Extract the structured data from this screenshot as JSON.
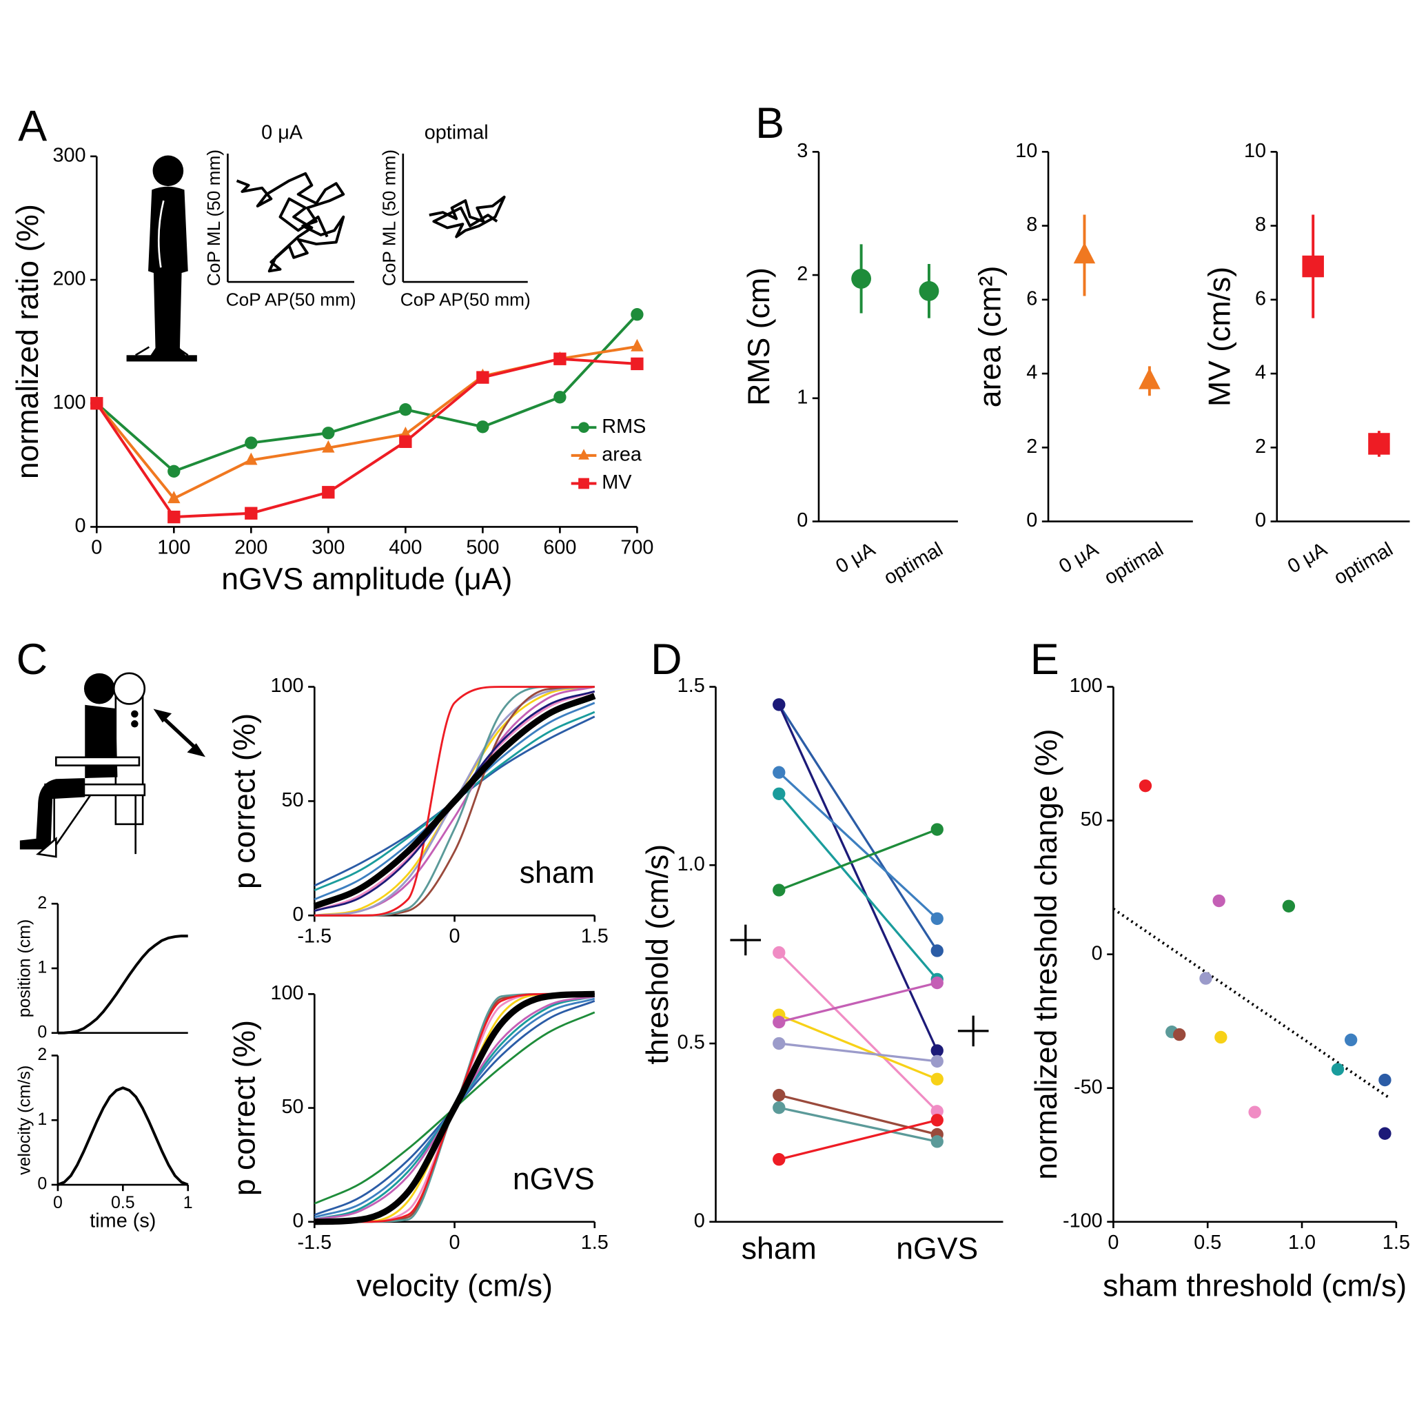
{
  "chart_data": [
    {
      "type": "line",
      "panel": "A",
      "xlabel": "nGVS amplitude (μA)",
      "ylabel": "normalized ratio (%)",
      "x": [
        0,
        100,
        200,
        300,
        400,
        500,
        600,
        700
      ],
      "xlim": [
        0,
        700
      ],
      "ylim": [
        0,
        300
      ],
      "xticks": [
        0,
        100,
        200,
        300,
        400,
        500,
        600,
        700
      ],
      "yticks": [
        0,
        100,
        200,
        300
      ],
      "legend": "lower right",
      "series": [
        {
          "name": "RMS",
          "color": "#1e8c3a",
          "marker": "circle",
          "values": [
            100,
            45,
            68,
            76,
            95,
            81,
            105,
            172
          ]
        },
        {
          "name": "area",
          "color": "#f07820",
          "marker": "triangle",
          "values": [
            100,
            23,
            54,
            64,
            75,
            122,
            136,
            146
          ]
        },
        {
          "name": "MV",
          "color": "#ee1c24",
          "marker": "square",
          "values": [
            100,
            8,
            11,
            28,
            69,
            121,
            136,
            132
          ]
        }
      ],
      "insets": [
        {
          "title": "0 μA",
          "xlabel": "CoP AP(50 mm)",
          "ylabel": "CoP ML (50 mm)"
        },
        {
          "title": "optimal",
          "xlabel": "CoP AP(50 mm)",
          "ylabel": "CoP ML (50 mm)"
        }
      ]
    },
    {
      "type": "errorbar",
      "panel": "B",
      "ylabel": "RMS (cm)",
      "categories": [
        "0 μA",
        "optimal"
      ],
      "values": [
        1.97,
        1.87
      ],
      "errors": [
        0.28,
        0.22
      ],
      "color": "#1e8c3a",
      "marker": "circle",
      "ylim": [
        0,
        3
      ],
      "yticks": [
        0,
        1,
        2,
        3
      ]
    },
    {
      "type": "errorbar",
      "ylabel": "area (cm²)",
      "categories": [
        "0 μA",
        "optimal"
      ],
      "values": [
        7.2,
        3.8
      ],
      "errors": [
        1.1,
        0.4
      ],
      "color": "#f07820",
      "marker": "triangle",
      "ylim": [
        0,
        10
      ],
      "yticks": [
        0,
        2,
        4,
        6,
        8,
        10
      ]
    },
    {
      "type": "errorbar",
      "ylabel": "MV (cm/s)",
      "categories": [
        "0 μA",
        "optimal"
      ],
      "values": [
        6.9,
        2.1
      ],
      "errors": [
        1.4,
        0.35
      ],
      "color": "#ee1c24",
      "marker": "square",
      "ylim": [
        0,
        10
      ],
      "yticks": [
        0,
        2,
        4,
        6,
        8,
        10
      ]
    },
    {
      "type": "line",
      "panel": "C",
      "ylabel": "position (cm)",
      "x": [
        0,
        0.05,
        0.1,
        0.15,
        0.2,
        0.25,
        0.3,
        0.35,
        0.4,
        0.45,
        0.5,
        0.55,
        0.6,
        0.65,
        0.7,
        0.75,
        0.8,
        0.85,
        0.9,
        0.95,
        1
      ],
      "xlim": [
        0,
        1
      ],
      "ylim": [
        0,
        2
      ],
      "yticks": [
        0,
        1,
        2
      ],
      "series": [
        {
          "color": "#000000",
          "values": [
            0,
            0.001,
            0.01,
            0.03,
            0.07,
            0.14,
            0.22,
            0.33,
            0.46,
            0.6,
            0.75,
            0.9,
            1.04,
            1.17,
            1.28,
            1.36,
            1.43,
            1.47,
            1.49,
            1.5,
            1.5
          ]
        }
      ]
    },
    {
      "type": "line",
      "ylabel": "velocity (cm/s)",
      "xlabel": "time (s)",
      "x": [
        0,
        0.05,
        0.1,
        0.15,
        0.2,
        0.25,
        0.3,
        0.35,
        0.4,
        0.45,
        0.5,
        0.55,
        0.6,
        0.65,
        0.7,
        0.75,
        0.8,
        0.85,
        0.9,
        0.95,
        1
      ],
      "xlim": [
        0,
        1
      ],
      "ylim": [
        0,
        2
      ],
      "xticks": [
        0,
        0.5,
        1
      ],
      "yticks": [
        0,
        1,
        2
      ],
      "series": [
        {
          "color": "#000000",
          "values": [
            0,
            0.04,
            0.14,
            0.31,
            0.52,
            0.75,
            0.98,
            1.19,
            1.36,
            1.46,
            1.5,
            1.46,
            1.36,
            1.19,
            0.98,
            0.75,
            0.52,
            0.31,
            0.14,
            0.04,
            0
          ]
        }
      ]
    },
    {
      "type": "line",
      "smooth": true,
      "ylabel": "p correct (%)",
      "text": "sham",
      "x": [
        -1.5,
        -1,
        -0.5,
        0,
        0.5,
        1,
        1.5
      ],
      "xlim": [
        -1.5,
        1.5
      ],
      "ylim": [
        0,
        100
      ],
      "xticks": [
        -1.5,
        0,
        1.5
      ],
      "yticks": [
        0,
        50,
        100
      ],
      "series": [
        {
          "color": "#2b5ca6",
          "values": [
            13,
            23,
            35,
            50,
            65,
            77,
            87
          ]
        },
        {
          "color": "#3d7fc0",
          "values": [
            7,
            16,
            31,
            50,
            69,
            84,
            93
          ]
        },
        {
          "color": "#1a9c9c",
          "values": [
            11,
            20,
            34,
            50,
            66,
            80,
            89
          ]
        },
        {
          "color": "#1e8c3a",
          "values": [
            5,
            13,
            29,
            50,
            71,
            87,
            95
          ]
        },
        {
          "color": "#f08cc4",
          "values": [
            2,
            9,
            25,
            50,
            75,
            91,
            98
          ]
        },
        {
          "color": "#f7d117",
          "values": [
            0,
            3,
            18,
            50,
            82,
            97,
            100
          ]
        },
        {
          "color": "#c45fb5",
          "values": [
            0,
            2,
            14,
            43,
            77,
            95,
            100
          ]
        },
        {
          "color": "#9b9bca",
          "values": [
            0,
            2,
            16,
            50,
            84,
            98,
            100
          ]
        },
        {
          "color": "#9a4a3c",
          "values": [
            0,
            0,
            2,
            28,
            80,
            99,
            100
          ]
        },
        {
          "color": "#5b9a99",
          "values": [
            0,
            0,
            3,
            38,
            89,
            100,
            100
          ]
        },
        {
          "color": "#ee1c24",
          "values": [
            0,
            0,
            7,
            93,
            100,
            100,
            100
          ]
        },
        {
          "color": "#1c1a78",
          "values": [
            2,
            8,
            24,
            50,
            76,
            92,
            98
          ]
        },
        {
          "color": "#000000",
          "values": [
            4,
            12,
            28,
            50,
            72,
            88,
            96
          ]
        }
      ]
    },
    {
      "type": "line",
      "smooth": true,
      "ylabel": "p correct (%)",
      "xlabel": "velocity (cm/s)",
      "text": "nGVS",
      "x": [
        -1.5,
        -1,
        -0.5,
        0,
        0.5,
        1,
        1.5
      ],
      "xlim": [
        -1.5,
        1.5
      ],
      "ylim": [
        0,
        100
      ],
      "xticks": [
        -1.5,
        0,
        1.5
      ],
      "yticks": [
        0,
        50,
        100
      ],
      "series": [
        {
          "color": "#2b5ca6",
          "values": [
            3,
            11,
            27,
            50,
            73,
            89,
            97
          ]
        },
        {
          "color": "#3d7fc0",
          "values": [
            2,
            8,
            24,
            50,
            76,
            92,
            98
          ]
        },
        {
          "color": "#1a9c9c",
          "values": [
            1,
            6,
            22,
            50,
            78,
            94,
            99
          ]
        },
        {
          "color": "#1e8c3a",
          "values": [
            8,
            17,
            32,
            50,
            68,
            83,
            92
          ]
        },
        {
          "color": "#f08cc4",
          "values": [
            0,
            0,
            5,
            50,
            95,
            100,
            100
          ]
        },
        {
          "color": "#f7d117",
          "values": [
            0,
            0,
            9,
            50,
            91,
            100,
            100
          ]
        },
        {
          "color": "#c45fb5",
          "values": [
            1,
            5,
            20,
            50,
            80,
            95,
            99
          ]
        },
        {
          "color": "#9b9bca",
          "values": [
            0,
            1,
            12,
            50,
            88,
            99,
            100
          ]
        },
        {
          "color": "#9a4a3c",
          "values": [
            0,
            0,
            2,
            50,
            98,
            100,
            100
          ]
        },
        {
          "color": "#5b9a99",
          "values": [
            0,
            0,
            1,
            50,
            99,
            100,
            100
          ]
        },
        {
          "color": "#ee1c24",
          "values": [
            0,
            0,
            3,
            50,
            97,
            100,
            100
          ]
        },
        {
          "color": "#1c1a78",
          "values": [
            0,
            1,
            13,
            50,
            87,
            99,
            100
          ]
        },
        {
          "color": "#000000",
          "values": [
            0,
            1,
            13,
            50,
            87,
            99,
            100
          ]
        }
      ]
    },
    {
      "type": "paired",
      "panel": "D",
      "ylabel": "threshold (cm/s)",
      "categories": [
        "sham",
        "nGVS"
      ],
      "ylim": [
        0,
        1.5
      ],
      "yticks": [
        0,
        0.5,
        {
          "value": 1,
          "label": "1.0"
        },
        1.5
      ],
      "means": [
        0.79,
        0.535
      ],
      "series": [
        {
          "color": "#2b5ca6",
          "values": [
            1.45,
            0.76
          ]
        },
        {
          "color": "#1c1a78",
          "values": [
            1.45,
            0.48
          ]
        },
        {
          "color": "#3d7fc0",
          "values": [
            1.26,
            0.85
          ]
        },
        {
          "color": "#1a9c9c",
          "values": [
            1.2,
            0.68
          ]
        },
        {
          "color": "#1e8c3a",
          "values": [
            0.93,
            1.1
          ]
        },
        {
          "color": "#f08cc4",
          "values": [
            0.755,
            0.31
          ]
        },
        {
          "color": "#f7d117",
          "values": [
            0.58,
            0.4
          ]
        },
        {
          "color": "#c45fb5",
          "values": [
            0.56,
            0.67
          ]
        },
        {
          "color": "#9b9bca",
          "values": [
            0.5,
            0.45
          ]
        },
        {
          "color": "#9a4a3c",
          "values": [
            0.355,
            0.245
          ]
        },
        {
          "color": "#5b9a99",
          "values": [
            0.32,
            0.225
          ]
        },
        {
          "color": "#ee1c24",
          "values": [
            0.175,
            0.285
          ]
        }
      ]
    },
    {
      "type": "scatter",
      "panel": "E",
      "xlabel": "sham threshold (cm/s)",
      "ylabel": "normalized threshold change (%)",
      "x": [
        0.17,
        0.56,
        0.93,
        0.49,
        0.31,
        0.35,
        0.57,
        0.75,
        1.19,
        1.26,
        1.44,
        1.44
      ],
      "values": [
        63,
        20,
        18,
        -9,
        -29,
        -30,
        -31,
        -59,
        -43,
        -32,
        -47,
        -67
      ],
      "colors": [
        "#ee1c24",
        "#c45fb5",
        "#1e8c3a",
        "#9b9bca",
        "#5b9a99",
        "#9a4a3c",
        "#f7d117",
        "#f08cc4",
        "#1a9c9c",
        "#3d7fc0",
        "#2b5ca6",
        "#1c1a78"
      ],
      "fit": {
        "x": [
          0,
          1.47
        ],
        "values": [
          17,
          -54
        ]
      },
      "xlim": [
        0,
        1.5
      ],
      "ylim": [
        -100,
        100
      ],
      "xticks": [
        0,
        0.5,
        {
          "value": 1,
          "label": "1.0"
        },
        1.5
      ],
      "yticks": [
        -100,
        -50,
        0,
        50,
        100
      ]
    }
  ]
}
